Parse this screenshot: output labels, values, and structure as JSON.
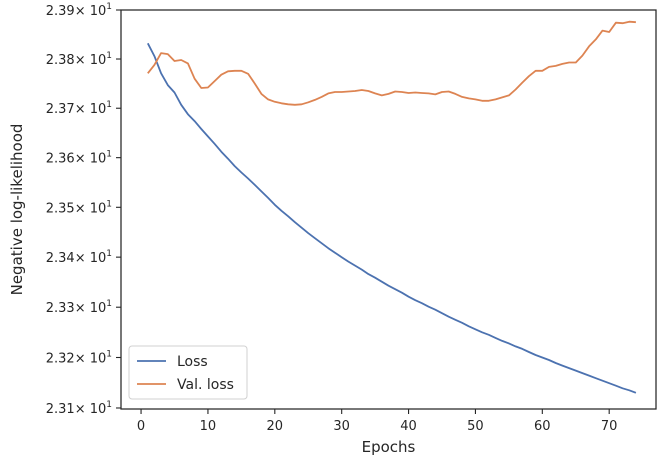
{
  "chart_data": {
    "type": "line",
    "title": "",
    "xlabel": "Epochs",
    "ylabel": "Negative log-likelihood",
    "xlim": [
      -3,
      77
    ],
    "ylim": [
      23.098,
      23.9
    ],
    "y_scale": "log",
    "x_ticks": [
      0,
      10,
      20,
      30,
      40,
      50,
      60,
      70
    ],
    "y_ticks": [
      {
        "value": 23.1,
        "mantissa": "2.31"
      },
      {
        "value": 23.2,
        "mantissa": "2.32"
      },
      {
        "value": 23.3,
        "mantissa": "2.33"
      },
      {
        "value": 23.4,
        "mantissa": "2.34"
      },
      {
        "value": 23.5,
        "mantissa": "2.35"
      },
      {
        "value": 23.6,
        "mantissa": "2.36"
      },
      {
        "value": 23.7,
        "mantissa": "2.37"
      },
      {
        "value": 23.8,
        "mantissa": "2.38"
      },
      {
        "value": 23.9,
        "mantissa": "2.39"
      }
    ],
    "y_tick_suffix": "× 10",
    "y_tick_exponent": "1",
    "grid": false,
    "legend": {
      "placement": "lower-left"
    },
    "series": [
      {
        "name": "Loss",
        "color": "#4c72b0",
        "x": [
          1,
          2,
          3,
          4,
          5,
          6,
          7,
          8,
          9,
          10,
          11,
          12,
          13,
          14,
          15,
          16,
          17,
          18,
          19,
          20,
          21,
          22,
          23,
          24,
          25,
          26,
          27,
          28,
          29,
          30,
          31,
          32,
          33,
          34,
          35,
          36,
          37,
          38,
          39,
          40,
          41,
          42,
          43,
          44,
          45,
          46,
          47,
          48,
          49,
          50,
          51,
          52,
          53,
          54,
          55,
          56,
          57,
          58,
          59,
          60,
          61,
          62,
          63,
          64,
          65,
          66,
          67,
          68,
          69,
          70,
          71,
          72,
          73,
          74
        ],
        "y": [
          23.832,
          23.806,
          23.771,
          23.747,
          23.732,
          23.707,
          23.688,
          23.674,
          23.658,
          23.643,
          23.628,
          23.612,
          23.598,
          23.583,
          23.57,
          23.558,
          23.545,
          23.532,
          23.519,
          23.505,
          23.493,
          23.482,
          23.47,
          23.459,
          23.448,
          23.438,
          23.428,
          23.418,
          23.409,
          23.4,
          23.391,
          23.383,
          23.375,
          23.366,
          23.359,
          23.351,
          23.343,
          23.336,
          23.329,
          23.321,
          23.314,
          23.308,
          23.301,
          23.295,
          23.288,
          23.281,
          23.275,
          23.269,
          23.262,
          23.256,
          23.25,
          23.245,
          23.239,
          23.233,
          23.228,
          23.222,
          23.217,
          23.211,
          23.205,
          23.2,
          23.195,
          23.189,
          23.184,
          23.179,
          23.174,
          23.169,
          23.164,
          23.159,
          23.154,
          23.149,
          23.144,
          23.139,
          23.135,
          23.13
        ]
      },
      {
        "name": "Val. loss",
        "color": "#dd8452",
        "x": [
          1,
          2,
          3,
          4,
          5,
          6,
          7,
          8,
          9,
          10,
          11,
          12,
          13,
          14,
          15,
          16,
          17,
          18,
          19,
          20,
          21,
          22,
          23,
          24,
          25,
          26,
          27,
          28,
          29,
          30,
          31,
          32,
          33,
          34,
          35,
          36,
          37,
          38,
          39,
          40,
          41,
          42,
          43,
          44,
          45,
          46,
          47,
          48,
          49,
          50,
          51,
          52,
          53,
          54,
          55,
          56,
          57,
          58,
          59,
          60,
          61,
          62,
          63,
          64,
          65,
          66,
          67,
          68,
          69,
          70,
          71,
          72,
          73,
          74
        ],
        "y": [
          23.771,
          23.788,
          23.812,
          23.81,
          23.796,
          23.798,
          23.791,
          23.76,
          23.741,
          23.742,
          23.755,
          23.768,
          23.775,
          23.776,
          23.776,
          23.77,
          23.75,
          23.729,
          23.718,
          23.713,
          23.71,
          23.708,
          23.707,
          23.708,
          23.712,
          23.717,
          23.723,
          23.73,
          23.733,
          23.733,
          23.734,
          23.735,
          23.737,
          23.735,
          23.73,
          23.726,
          23.729,
          23.734,
          23.733,
          23.731,
          23.732,
          23.731,
          23.73,
          23.728,
          23.733,
          23.734,
          23.729,
          23.723,
          23.72,
          23.718,
          23.715,
          23.715,
          23.718,
          23.722,
          23.726,
          23.738,
          23.752,
          23.765,
          23.776,
          23.776,
          23.784,
          23.786,
          23.79,
          23.793,
          23.793,
          23.807,
          23.826,
          23.84,
          23.858,
          23.855,
          23.874,
          23.873,
          23.876,
          23.875
        ]
      }
    ]
  }
}
